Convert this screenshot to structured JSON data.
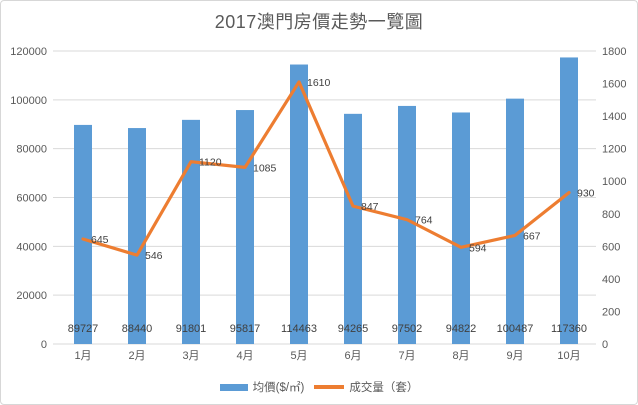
{
  "chart_data": {
    "type": "combo",
    "title": "2017澳門房價走勢一覽圖",
    "categories": [
      "1月",
      "2月",
      "3月",
      "4月",
      "5月",
      "6月",
      "7月",
      "8月",
      "9月",
      "10月"
    ],
    "series": [
      {
        "name": "均價($/㎡)",
        "type": "bar",
        "axis": "left",
        "color": "#5B9BD5",
        "values": [
          89727,
          88440,
          91801,
          95817,
          114463,
          94265,
          97502,
          94822,
          100487,
          117360
        ]
      },
      {
        "name": "成交量（套）",
        "type": "line",
        "axis": "right",
        "color": "#ED7D31",
        "values": [
          645,
          546,
          1120,
          1085,
          1610,
          847,
          764,
          594,
          667,
          930
        ]
      }
    ],
    "left_axis": {
      "min": 0,
      "max": 120000,
      "step": 20000,
      "tick_labels": [
        "0",
        "20000",
        "40000",
        "60000",
        "80000",
        "100000",
        "120000"
      ]
    },
    "right_axis": {
      "min": 0,
      "max": 1800,
      "step": 200,
      "tick_labels": [
        "0",
        "200",
        "400",
        "600",
        "800",
        "1000",
        "1200",
        "1400",
        "1600",
        "1800"
      ]
    },
    "grid": true,
    "legend_position": "bottom",
    "colors": {
      "bar": "#5B9BD5",
      "line": "#ED7D31",
      "gridline": "#D9D9D9",
      "axis_text": "#595959",
      "data_label_text": "#404040",
      "title_text": "#595959",
      "border": "#D7D7D7",
      "background": "#FFFFFF"
    }
  }
}
